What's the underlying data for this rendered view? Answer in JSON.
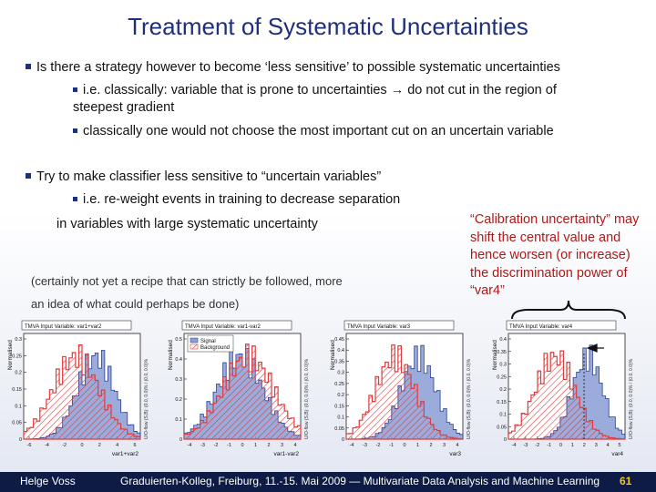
{
  "slide": {
    "title": "Treatment of Systematic Uncertainties",
    "bullets": {
      "b1": "Is there a strategy however to become ‘less sensitive’ to possible systematic uncertainties",
      "b1a_1": "i.e. classically:   variable that is prone to uncertainties → do not cut in the region of",
      "b1a_2": "steepest gradient",
      "b1b": "classically one would not choose the most important cut on an uncertain variable",
      "b2": "Try to make classifier less sensitive to “uncertain variables”",
      "b2a_1": "i.e. re-weight events in training to decrease separation",
      "b2a_2": "in  variables with large systematic uncertainty"
    },
    "note_1": "(certainly not yet a recipe that can strictly be followed, more",
    "note_2": "an idea of what could perhaps be done)",
    "callout": "“Calibration uncertainty” may shift the central value and hence worsen (or increase)  the discrimination power of “var4”"
  },
  "plots": [
    {
      "header": "TMVA Input Variable: var1+var2",
      "xlabel": "var1+var2",
      "ylabel": "Normalised",
      "yticks": [
        "0.3",
        "0.25",
        "0.2",
        "0.15",
        "0.1",
        "0.05",
        "0"
      ],
      "xticks": [
        "-6",
        "-4",
        "-2",
        "0",
        "2",
        "4",
        "6"
      ],
      "side": "U/O-flow (S,B): (0.0, 0.0)% / (0.0, 0.0)%"
    },
    {
      "header": "TMVA Input Variable: var1-var2",
      "xlabel": "var1-var2",
      "ylabel": "Normalised",
      "yticks": [
        "0.5",
        "0.4",
        "0.3",
        "0.2",
        "0.1",
        "0"
      ],
      "xticks": [
        "-4",
        "-3",
        "-2",
        "-1",
        "0",
        "1",
        "2",
        "3",
        "4"
      ],
      "side": "U/O-flow (S,B): (0.0, 0.0)% / (0.0, 0.0)%",
      "legend": [
        "Signal",
        "Background"
      ]
    },
    {
      "header": "TMVA Input Variable: var3",
      "xlabel": "var3",
      "ylabel": "Normalised",
      "yticks": [
        "0.45",
        "0.4",
        "0.35",
        "0.3",
        "0.25",
        "0.2",
        "0.15",
        "0.1",
        "0.05",
        "0"
      ],
      "xticks": [
        "-4",
        "-3",
        "-2",
        "-1",
        "0",
        "1",
        "2",
        "3",
        "4"
      ],
      "side": "U/O-flow (S,B): (0.0, 0.0)% / (0.0, 0.0)%"
    },
    {
      "header": "TMVA Input Variable: var4",
      "xlabel": "var4",
      "ylabel": "Normalised",
      "yticks": [
        "0.4",
        "0.35",
        "0.3",
        "0.25",
        "0.2",
        "0.15",
        "0.1",
        "0.05",
        "0"
      ],
      "xticks": [
        "-4",
        "-3",
        "-2",
        "-1",
        "0",
        "1",
        "2",
        "3",
        "4",
        "5"
      ],
      "side": "U/O-flow (S,B): (0.0, 0.0)% / (0.0, 0.0)%"
    }
  ],
  "footer": {
    "author": "Helge Voss",
    "event": "Graduierten-Kolleg, Freiburg,  11.-15. Mai 2009  — Multivariate Data Analysis and Machine Learning",
    "page": "61"
  },
  "colors": {
    "signal": "#8a9ed6",
    "background": "#e33b3b",
    "title": "#1f2f7a",
    "callout": "#b01818"
  }
}
